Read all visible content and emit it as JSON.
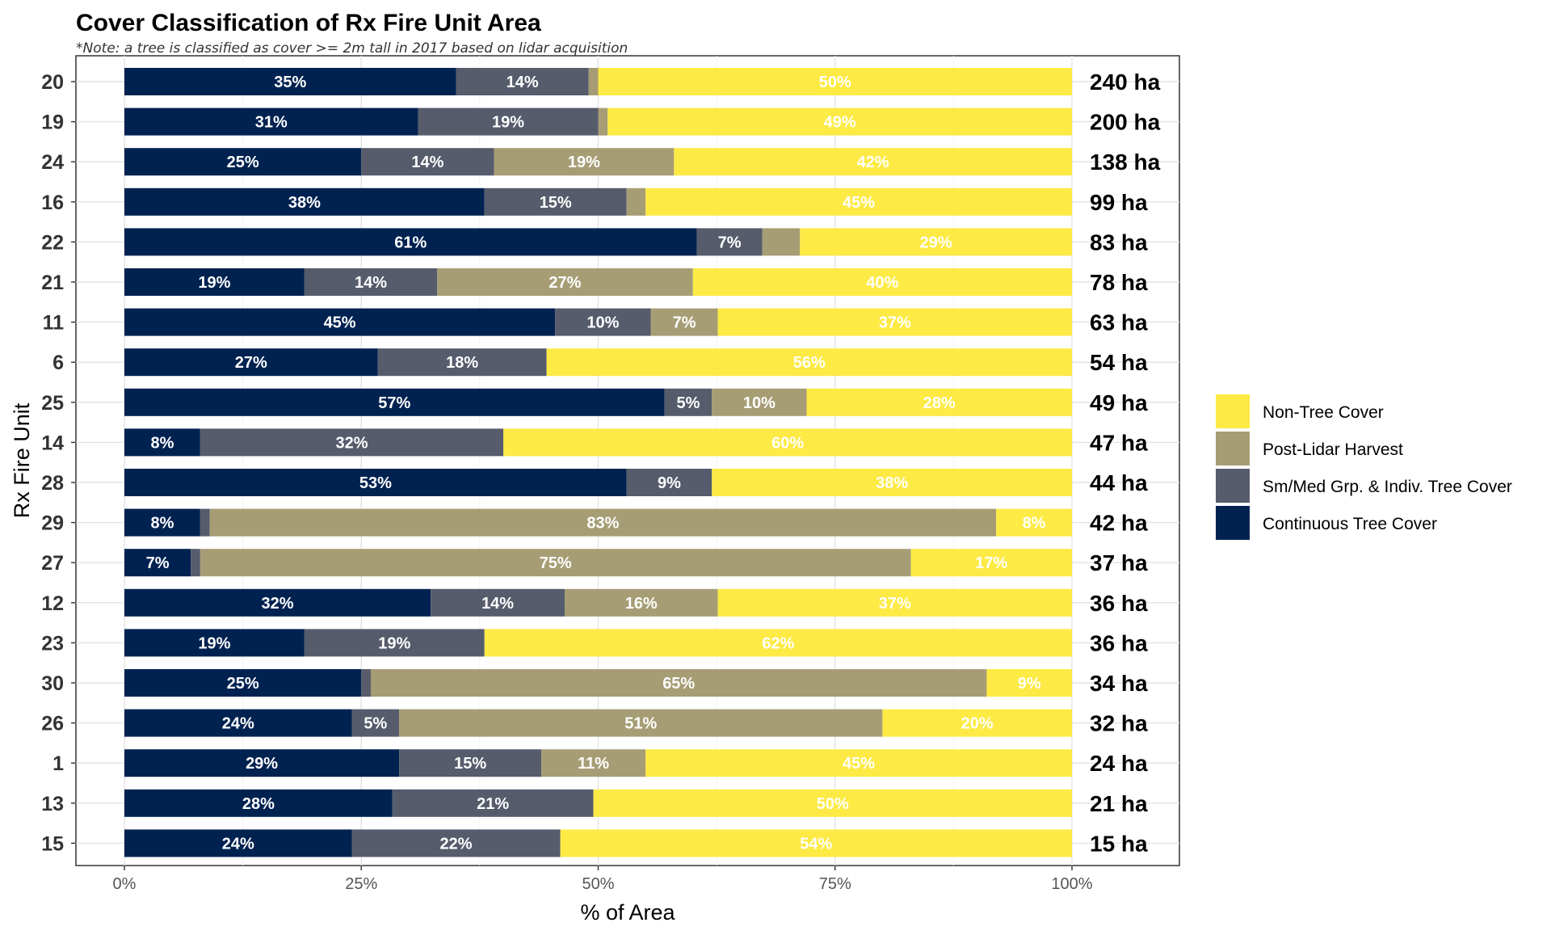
{
  "chart_data": {
    "type": "bar",
    "orientation": "horizontal",
    "stacked": "percent",
    "title": "Cover Classification of Rx Fire Unit Area",
    "subtitle": "*Note: a tree is classified as cover >= 2m tall in 2017 based on lidar acquisition",
    "xlabel": "% of Area",
    "ylabel": "Rx Fire Unit",
    "xlim": [
      0,
      100
    ],
    "x_ticks": [
      "0%",
      "25%",
      "50%",
      "75%",
      "100%"
    ],
    "grid": true,
    "legend_position": "right",
    "legend_order": [
      "Non-Tree Cover",
      "Post-Lidar Harvest",
      "Sm/Med Grp. & Indiv. Tree Cover",
      "Continuous Tree Cover"
    ],
    "categories": [
      "20",
      "19",
      "24",
      "16",
      "22",
      "21",
      "11",
      "6",
      "25",
      "14",
      "28",
      "29",
      "27",
      "12",
      "23",
      "30",
      "26",
      "1",
      "13",
      "15"
    ],
    "area_labels": [
      "240 ha",
      "200 ha",
      "138 ha",
      "99 ha",
      "83 ha",
      "78 ha",
      "63 ha",
      "54 ha",
      "49 ha",
      "47 ha",
      "44 ha",
      "42 ha",
      "37 ha",
      "36 ha",
      "36 ha",
      "34 ha",
      "32 ha",
      "24 ha",
      "21 ha",
      "15 ha"
    ],
    "series": [
      {
        "name": "Continuous Tree Cover",
        "color": "#002251",
        "values": [
          35,
          31,
          25,
          38,
          61,
          19,
          45,
          27,
          57,
          8,
          53,
          8,
          7,
          32,
          19,
          25,
          24,
          29,
          28,
          24
        ]
      },
      {
        "name": "Sm/Med Grp. & Indiv. Tree Cover",
        "color": "#565C6C",
        "values": [
          14,
          19,
          14,
          15,
          7,
          14,
          10,
          18,
          5,
          32,
          9,
          1,
          1,
          14,
          19,
          1,
          5,
          15,
          21,
          22
        ]
      },
      {
        "name": "Post-Lidar Harvest",
        "color": "#A69D75",
        "values": [
          1,
          1,
          19,
          2,
          4,
          27,
          7,
          0,
          10,
          0,
          0,
          83,
          75,
          16,
          0,
          65,
          51,
          11,
          0,
          0
        ]
      },
      {
        "name": "Non-Tree Cover",
        "color": "#FDEA45",
        "values": [
          50,
          49,
          42,
          45,
          29,
          40,
          37,
          56,
          28,
          60,
          38,
          8,
          17,
          37,
          62,
          9,
          20,
          45,
          50,
          54
        ]
      }
    ]
  }
}
